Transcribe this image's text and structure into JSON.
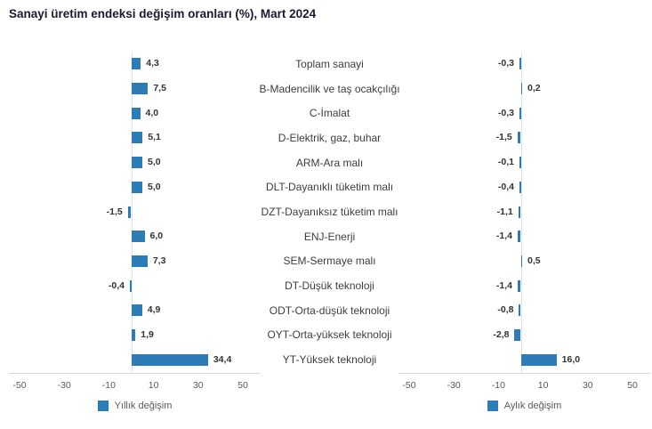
{
  "title": "Sanayi üretim endeksi değişim oranları (%), Mart 2024",
  "colors": {
    "bar": "#2e7cb5",
    "axis_line": "#d9d9d9",
    "zero_line": "#dbe5ee",
    "title_text": "#1a1a2e",
    "value_text": "#333333",
    "category_text": "#3d3d3d",
    "tick_text": "#595959"
  },
  "legend": {
    "left_label": "Yıllık değişim",
    "right_label": "Aylık değişim"
  },
  "chart_data": {
    "type": "bar",
    "orientation": "horizontal",
    "title": "Sanayi üretim endeksi değişim oranları (%), Mart 2024",
    "categories": [
      "Toplam sanayi",
      "B-Madencilik ve taş ocakçılığı",
      "C-İmalat",
      "D-Elektrik, gaz, buhar",
      "ARM-Ara malı",
      "DLT-Dayanıklı tüketim malı",
      "DZT-Dayanıksız tüketim malı",
      "ENJ-Enerji",
      "SEM-Sermaye malı",
      "DT-Düşük teknoloji",
      "ODT-Orta-düşük teknoloji",
      "OYT-Orta-yüksek teknoloji",
      "YT-Yüksek teknoloji"
    ],
    "series": [
      {
        "name": "Yıllık değişim",
        "values": [
          4.3,
          7.5,
          4.0,
          5.1,
          5.0,
          5.0,
          -1.5,
          6.0,
          7.3,
          -0.4,
          4.9,
          1.9,
          34.4
        ],
        "labels": [
          "4,3",
          "7,5",
          "4,0",
          "5,1",
          "5,0",
          "5,0",
          "-1,5",
          "6,0",
          "7,3",
          "-0,4",
          "4,9",
          "1,9",
          "34,4"
        ]
      },
      {
        "name": "Aylık değişim",
        "values": [
          -0.3,
          0.2,
          -0.3,
          -1.5,
          -0.1,
          -0.4,
          -1.1,
          -1.4,
          0.5,
          -1.4,
          -0.8,
          -2.8,
          16.0
        ],
        "labels": [
          "-0,3",
          "0,2",
          "-0,3",
          "-1,5",
          "-0,1",
          "-0,4",
          "-1,1",
          "-1,4",
          "0,5",
          "-1,4",
          "-0,8",
          "-2,8",
          "16,0"
        ]
      }
    ],
    "x_ticks": [
      -50,
      -30,
      -10,
      10,
      30,
      50
    ],
    "x_tick_labels": [
      "-50",
      "-30",
      "-10",
      "10",
      "30",
      "50"
    ],
    "xlim": [
      -55,
      58
    ],
    "grid": "zero-line-only",
    "legend_position": "bottom",
    "value_labels": "on"
  }
}
